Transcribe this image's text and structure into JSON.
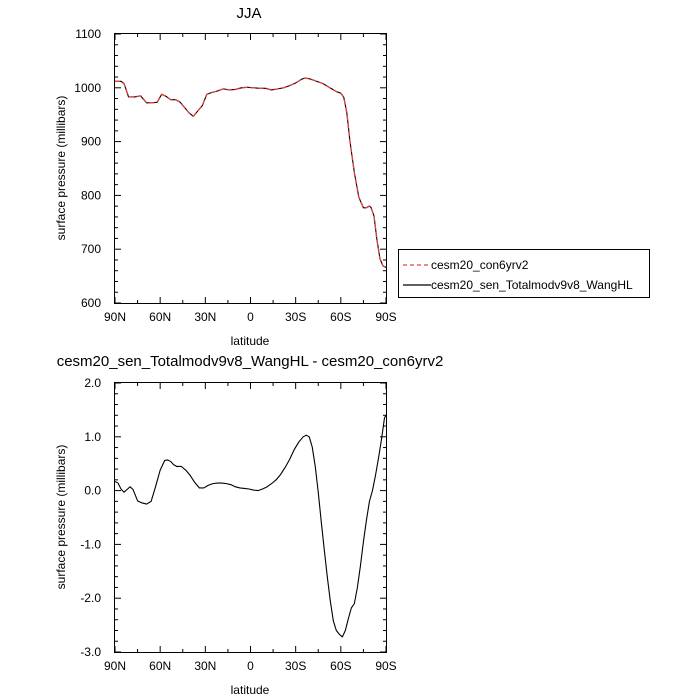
{
  "chart_data": [
    {
      "type": "line",
      "title": "JJA",
      "xlabel": "latitude",
      "ylabel": "surface pressure (millibars)",
      "x_ticks": [
        90,
        60,
        30,
        0,
        -30,
        -60,
        -90
      ],
      "x_tick_labels": [
        "90N",
        "60N",
        "30N",
        "0",
        "30S",
        "60S",
        "90S"
      ],
      "ylim": [
        600,
        1100
      ],
      "y_ticks": [
        600,
        700,
        800,
        900,
        1000,
        1100
      ],
      "y_tick_labels": [
        "600",
        "700",
        "800",
        "900",
        "1000",
        "1100"
      ],
      "legend_position": "right",
      "series": [
        {
          "name": "cesm20_con6yrv2",
          "color": "#e04040",
          "dash": "dashed",
          "x": [
            90,
            86,
            84,
            81,
            77,
            73,
            69,
            66,
            62,
            59,
            56,
            53,
            50,
            47,
            44,
            41,
            38,
            35,
            32,
            29,
            26,
            22,
            18,
            14,
            10,
            6,
            2,
            -2,
            -6,
            -10,
            -14,
            -18,
            -22,
            -26,
            -30,
            -34,
            -36,
            -39,
            -42,
            -45,
            -48,
            -51,
            -54,
            -57,
            -60,
            -62,
            -64,
            -66,
            -69,
            -72,
            -75,
            -77,
            -78.8,
            -80,
            -82,
            -84,
            -86,
            -88,
            -90
          ],
          "y": [
            1012,
            1012,
            1008,
            983,
            983,
            985,
            972,
            972,
            973,
            988,
            984,
            978,
            978,
            974,
            964,
            954,
            947,
            957,
            967,
            988,
            991,
            994,
            998,
            996,
            997,
            1000,
            1001,
            1000,
            999,
            999,
            996,
            998,
            1000,
            1004,
            1009,
            1016,
            1018,
            1017,
            1014,
            1011,
            1008,
            1003,
            998,
            993,
            990,
            982,
            953,
            902,
            842,
            796,
            777,
            777,
            780,
            778,
            762,
            717,
            682,
            669,
            666
          ]
        },
        {
          "name": "cesm20_sen_Totalmodv9v8_WangHL",
          "color": "#000000",
          "dash": "solid",
          "x": [
            90,
            86,
            84,
            81,
            77,
            73,
            69,
            66,
            62,
            59,
            56,
            53,
            50,
            47,
            44,
            41,
            38,
            35,
            32,
            29,
            26,
            22,
            18,
            14,
            10,
            6,
            2,
            -2,
            -6,
            -10,
            -14,
            -18,
            -22,
            -26,
            -30,
            -34,
            -36,
            -39,
            -42,
            -45,
            -48,
            -51,
            -54,
            -57,
            -60,
            -62,
            -64,
            -66,
            -69,
            -72,
            -75,
            -77,
            -78.8,
            -80,
            -82,
            -84,
            -86,
            -88,
            -90
          ],
          "y": [
            1012,
            1012,
            1008,
            983,
            983,
            985,
            972,
            972,
            973,
            988,
            984,
            978,
            978,
            974,
            964,
            954,
            947,
            957,
            967,
            988,
            991,
            994,
            998,
            996,
            997,
            1000,
            1001,
            1000,
            999,
            999,
            996,
            998,
            1000,
            1004,
            1009,
            1016,
            1018,
            1017,
            1014,
            1011,
            1008,
            1003,
            998,
            993,
            990,
            982,
            953,
            902,
            842,
            796,
            777,
            777,
            780,
            778,
            762,
            717,
            682,
            669,
            666
          ]
        }
      ]
    },
    {
      "type": "line",
      "title": "cesm20_sen_Totalmodv9v8_WangHL - cesm20_con6yrv2",
      "xlabel": "latitude",
      "ylabel": "surface pressure (millibars)",
      "x_ticks": [
        90,
        60,
        30,
        0,
        -30,
        -60,
        -90
      ],
      "x_tick_labels": [
        "90N",
        "60N",
        "30N",
        "0",
        "30S",
        "60S",
        "90S"
      ],
      "ylim": [
        -3.0,
        2.0
      ],
      "y_ticks": [
        -3.0,
        -2.0,
        -1.0,
        0.0,
        1.0,
        2.0
      ],
      "y_tick_labels": [
        "-3.0",
        "-2.0",
        "-1.0",
        "0.0",
        "1.0",
        "2.0"
      ],
      "series": [
        {
          "color": "#000000",
          "dash": "solid",
          "x": [
            90,
            88,
            86,
            84,
            82,
            80,
            78,
            75,
            72,
            69,
            66,
            63,
            60,
            57,
            55,
            53,
            51,
            49,
            46,
            43,
            40,
            37,
            34,
            31,
            28,
            25,
            22,
            19,
            16,
            13,
            10,
            7,
            4,
            1,
            -2,
            -5,
            -8,
            -11,
            -14,
            -17,
            -20,
            -23,
            -26,
            -29,
            -32,
            -35,
            -37,
            -39,
            -41,
            -43,
            -45,
            -47,
            -49,
            -51,
            -53,
            -55,
            -57,
            -59,
            -61,
            -63,
            -65,
            -67,
            -69,
            -71,
            -73,
            -75,
            -77,
            -79,
            -81,
            -83,
            -85,
            -87,
            -89,
            -90
          ],
          "y": [
            0.17,
            0.14,
            0.03,
            -0.03,
            0.02,
            0.07,
            0.02,
            -0.19,
            -0.23,
            -0.25,
            -0.2,
            0.08,
            0.38,
            0.56,
            0.57,
            0.54,
            0.48,
            0.45,
            0.45,
            0.38,
            0.28,
            0.15,
            0.05,
            0.05,
            0.1,
            0.13,
            0.14,
            0.14,
            0.13,
            0.11,
            0.07,
            0.05,
            0.04,
            0.03,
            0.01,
            0.0,
            0.03,
            0.07,
            0.13,
            0.2,
            0.3,
            0.43,
            0.58,
            0.76,
            0.9,
            1.0,
            1.03,
            1.0,
            0.81,
            0.45,
            -0.03,
            -0.58,
            -1.1,
            -1.6,
            -2.05,
            -2.42,
            -2.6,
            -2.67,
            -2.72,
            -2.6,
            -2.38,
            -2.18,
            -2.1,
            -1.8,
            -1.4,
            -0.95,
            -0.55,
            -0.2,
            0.0,
            0.28,
            0.6,
            0.95,
            1.35,
            1.4
          ]
        }
      ]
    }
  ]
}
